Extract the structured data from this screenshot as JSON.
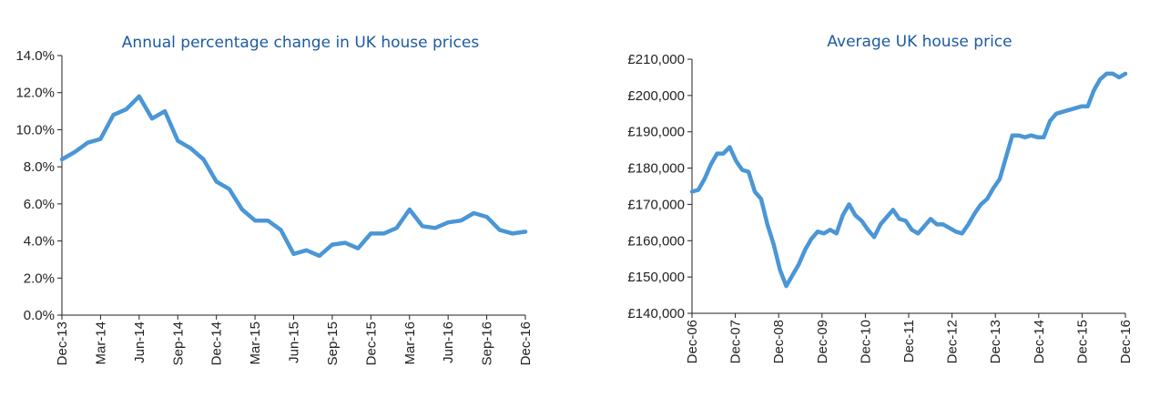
{
  "colors": {
    "series": "#4a96d6",
    "title": "#1d5aa0",
    "axis": "#222222"
  },
  "chart_data": [
    {
      "type": "line",
      "title": "Annual percentage change in UK house prices",
      "xlabel": "",
      "ylabel": "",
      "ylim": [
        0,
        14
      ],
      "y_ticks": [
        "0.0%",
        "2.0%",
        "4.0%",
        "6.0%",
        "8.0%",
        "10.0%",
        "12.0%",
        "14.0%"
      ],
      "x_ticks": [
        "Dec-13",
        "Mar-14",
        "Jun-14",
        "Sep-14",
        "Dec-14",
        "Mar-15",
        "Jun-15",
        "Sep-15",
        "Dec-15",
        "Mar-16",
        "Jun-16",
        "Sep-16",
        "Dec-16"
      ],
      "grid": false,
      "legend": "none",
      "series": [
        {
          "values": [
            8.4,
            8.8,
            9.3,
            9.5,
            10.8,
            11.1,
            11.8,
            10.6,
            11.0,
            9.4,
            9.0,
            8.4,
            7.2,
            6.8,
            5.7,
            5.1,
            5.1,
            4.6,
            3.3,
            3.5,
            3.2,
            3.8,
            3.9,
            3.6,
            4.4,
            4.4,
            4.7,
            5.7,
            4.8,
            4.7,
            5.0,
            5.1,
            5.5,
            5.3,
            4.6,
            4.4,
            4.5
          ]
        }
      ]
    },
    {
      "type": "line",
      "title": "Average UK house price",
      "xlabel": "",
      "ylabel": "",
      "ylim": [
        140000,
        210000
      ],
      "y_ticks": [
        "£140,000",
        "£150,000",
        "£160,000",
        "£170,000",
        "£180,000",
        "£190,000",
        "£200,000",
        "£210,000"
      ],
      "x_ticks": [
        "Dec-06",
        "Dec-07",
        "Dec-08",
        "Dec-09",
        "Dec-10",
        "Dec-11",
        "Dec-12",
        "Dec-13",
        "Dec-14",
        "Dec-15",
        "Dec-16"
      ],
      "grid": false,
      "legend": "none",
      "series": [
        {
          "values": [
            173500,
            174000,
            177000,
            181000,
            184000,
            184000,
            185800,
            182000,
            179500,
            179000,
            173500,
            171500,
            164500,
            159000,
            152000,
            147500,
            150500,
            153500,
            157500,
            160500,
            162500,
            162000,
            163000,
            162000,
            167000,
            170000,
            167000,
            165500,
            163000,
            161000,
            164500,
            166500,
            168500,
            166000,
            165500,
            163000,
            162000,
            164000,
            166000,
            164500,
            164500,
            163500,
            162500,
            162000,
            164500,
            167500,
            170000,
            171500,
            174500,
            177000,
            183000,
            189000,
            189000,
            188500,
            189000,
            188500,
            188500,
            193000,
            195000,
            195500,
            196000,
            196500,
            197000,
            197000,
            201500,
            204500,
            206000,
            206000,
            205000,
            206000
          ]
        }
      ]
    }
  ]
}
